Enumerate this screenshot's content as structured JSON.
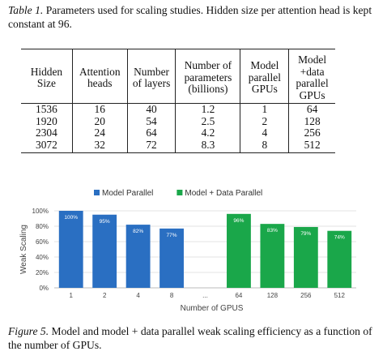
{
  "table_caption": {
    "label": "Table 1.",
    "text": " Parameters used for scaling studies. Hidden size per attention head is kept constant at 96."
  },
  "table": {
    "headers": [
      "Hidden Size",
      "Attention heads",
      "Number of layers",
      "Number of parameters (billions)",
      "Model parallel GPUs",
      "Model +data parallel GPUs"
    ],
    "rows": [
      [
        "1536",
        "16",
        "40",
        "1.2",
        "1",
        "64"
      ],
      [
        "1920",
        "20",
        "54",
        "2.5",
        "2",
        "128"
      ],
      [
        "2304",
        "24",
        "64",
        "4.2",
        "4",
        "256"
      ],
      [
        "3072",
        "32",
        "72",
        "8.3",
        "8",
        "512"
      ]
    ]
  },
  "chart_data": {
    "type": "bar",
    "categories": [
      "1",
      "2",
      "4",
      "8",
      "...",
      "64",
      "128",
      "256",
      "512"
    ],
    "series": [
      {
        "name": "Model Parallel",
        "color": "#2a6fc2",
        "values": [
          100,
          95,
          82,
          77,
          null,
          null,
          null,
          null,
          null
        ],
        "labels": [
          "100%",
          "95%",
          "82%",
          "77%",
          "",
          "",
          "",
          "",
          ""
        ]
      },
      {
        "name": "Model + Data Parallel",
        "color": "#1aa74a",
        "values": [
          null,
          null,
          null,
          null,
          null,
          96,
          83,
          79,
          74
        ],
        "labels": [
          "",
          "",
          "",
          "",
          "",
          "96%",
          "83%",
          "79%",
          "74%"
        ]
      }
    ],
    "yticks": [
      "0%",
      "20%",
      "40%",
      "60%",
      "80%",
      "100%"
    ],
    "ylim": [
      0,
      100
    ],
    "ylabel": "Weak Scaling",
    "xlabel": "Number of GPUS",
    "legend": "top",
    "grid": true
  },
  "figure_caption": {
    "label": "Figure 5.",
    "text": " Model and model + data parallel weak scaling efficiency as a function of the number of GPUs."
  }
}
